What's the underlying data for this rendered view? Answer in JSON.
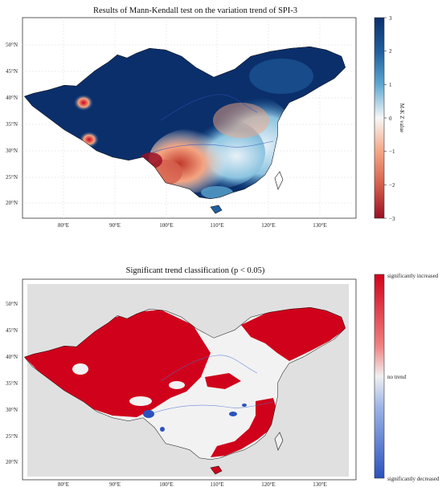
{
  "map1": {
    "title": "Results of Mann-Kendall test on the variation trend of SPI-3",
    "lat_ticks": [
      "50°N",
      "45°N",
      "40°N",
      "35°N",
      "30°N",
      "25°N",
      "20°N"
    ],
    "lon_ticks": [
      "80°E",
      "90°E",
      "100°E",
      "110°E",
      "120°E",
      "130°E"
    ],
    "colorbar": {
      "label": "M-K Z value",
      "ticks": [
        "3",
        "2",
        "1",
        "0",
        "−1",
        "−2",
        "−3"
      ],
      "range": [
        -3,
        3
      ],
      "colors": [
        "#0b2f6b",
        "#2b7bb9",
        "#8cc4e0",
        "#f7f7f7",
        "#f4a582",
        "#d6604d",
        "#b2182b"
      ]
    }
  },
  "map2": {
    "title": "Significant trend classification (p < 0.05)",
    "lat_ticks": [
      "50°N",
      "45°N",
      "40°N",
      "35°N",
      "30°N",
      "25°N",
      "20°N"
    ],
    "lon_ticks": [
      "80°E",
      "90°E",
      "100°E",
      "110°E",
      "120°E",
      "130°E"
    ],
    "legend": {
      "top": "significantly increased",
      "middle": "no trend",
      "bottom": "significantly decreased"
    },
    "colors": {
      "increase": "#d0021b",
      "none": "#e0e0e0",
      "decrease": "#2a52be"
    }
  }
}
